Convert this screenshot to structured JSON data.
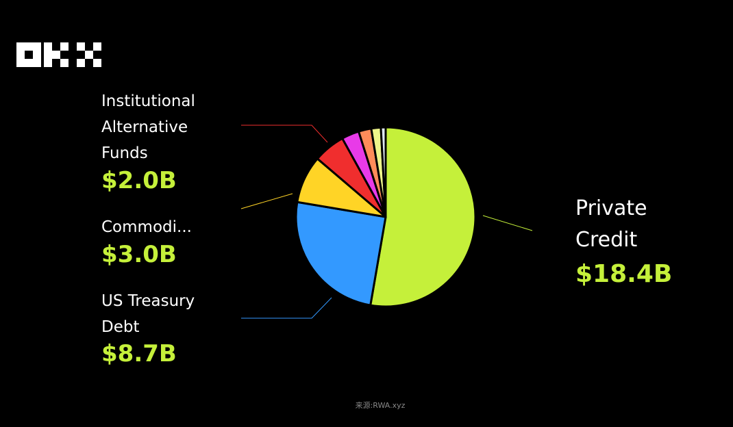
{
  "chart_data": {
    "type": "pie",
    "categories": [
      "Private Credit",
      "US Treasury Debt",
      "Commodi...",
      "Institutional Alternative Funds",
      null,
      null,
      null,
      null
    ],
    "values": [
      18.4,
      8.7,
      3.0,
      2.0,
      1.1,
      0.8,
      0.6,
      0.3
    ],
    "value_labels": [
      "$18.4B",
      "$8.7B",
      "$3.0B",
      "$2.0B",
      null,
      null,
      null,
      null
    ],
    "colors": [
      "#c5f03a",
      "#3399ff",
      "#ffd426",
      "#f02e2e",
      "#e83ae8",
      "#ff8c5a",
      "#eef58a",
      "#dde6f0"
    ],
    "source": "来源:RWA.xyz"
  }
}
